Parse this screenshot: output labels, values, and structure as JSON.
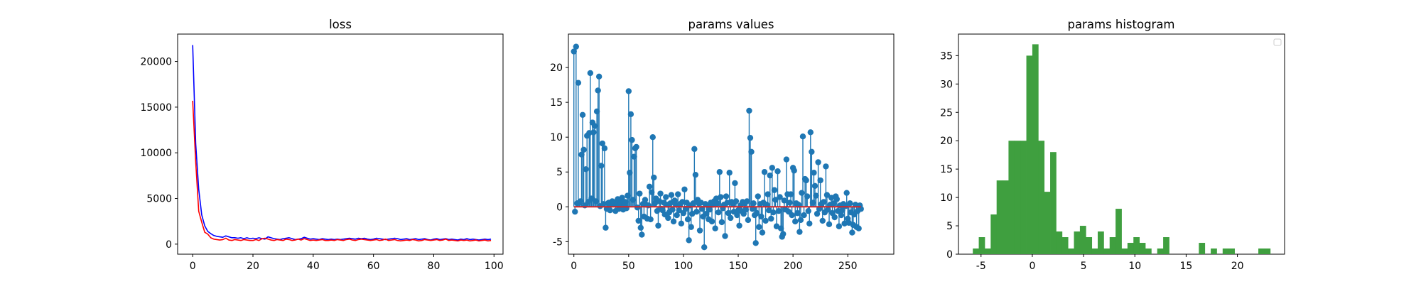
{
  "chart_data": [
    {
      "type": "line",
      "title": "loss",
      "xlabel": "",
      "ylabel": "",
      "xlim": [
        -5,
        103
      ],
      "ylim": [
        -1100,
        23000
      ],
      "xticks": [
        0,
        20,
        40,
        60,
        80,
        100
      ],
      "yticks": [
        0,
        5000,
        10000,
        15000,
        20000
      ],
      "grid": false,
      "series": [
        {
          "color": "#0000ff",
          "x": [
            0,
            1,
            2,
            3,
            4,
            5,
            6,
            7,
            8,
            9,
            10,
            11,
            12,
            13,
            14,
            15,
            16,
            17,
            18,
            19,
            20,
            21,
            22,
            23,
            24,
            25,
            26,
            27,
            28,
            29,
            30,
            31,
            32,
            33,
            34,
            35,
            36,
            37,
            38,
            39,
            40,
            41,
            42,
            43,
            44,
            45,
            46,
            47,
            48,
            49,
            50,
            51,
            52,
            53,
            54,
            55,
            56,
            57,
            58,
            59,
            60,
            61,
            62,
            63,
            64,
            65,
            66,
            67,
            68,
            69,
            70,
            71,
            72,
            73,
            74,
            75,
            76,
            77,
            78,
            79,
            80,
            81,
            82,
            83,
            84,
            85,
            86,
            87,
            88,
            89,
            90,
            91,
            92,
            93,
            94,
            95,
            96,
            97,
            98,
            99
          ],
          "y": [
            21800,
            11000,
            6000,
            3200,
            2000,
            1400,
            1150,
            950,
            850,
            800,
            750,
            900,
            800,
            700,
            700,
            650,
            700,
            600,
            700,
            600,
            650,
            600,
            700,
            600,
            550,
            800,
            700,
            600,
            550,
            500,
            600,
            650,
            700,
            600,
            500,
            550,
            600,
            750,
            650,
            550,
            600,
            550,
            500,
            600,
            550,
            500,
            550,
            500,
            550,
            500,
            550,
            600,
            650,
            600,
            550,
            650,
            600,
            650,
            550,
            500,
            550,
            650,
            600,
            550,
            500,
            550,
            600,
            650,
            600,
            500,
            550,
            600,
            500,
            550,
            600,
            500,
            550,
            600,
            500,
            450,
            550,
            600,
            500,
            550,
            600,
            500,
            550,
            500,
            450,
            550,
            500,
            600,
            500,
            550,
            500,
            450,
            500,
            550,
            500,
            550
          ]
        },
        {
          "color": "#ff0000",
          "x": [
            0,
            1,
            2,
            3,
            4,
            5,
            6,
            7,
            8,
            9,
            10,
            11,
            12,
            13,
            14,
            15,
            16,
            17,
            18,
            19,
            20,
            21,
            22,
            23,
            24,
            25,
            26,
            27,
            28,
            29,
            30,
            31,
            32,
            33,
            34,
            35,
            36,
            37,
            38,
            39,
            40,
            41,
            42,
            43,
            44,
            45,
            46,
            47,
            48,
            49,
            50,
            51,
            52,
            53,
            54,
            55,
            56,
            57,
            58,
            59,
            60,
            61,
            62,
            63,
            64,
            65,
            66,
            67,
            68,
            69,
            70,
            71,
            72,
            73,
            74,
            75,
            76,
            77,
            78,
            79,
            80,
            81,
            82,
            83,
            84,
            85,
            86,
            87,
            88,
            89,
            90,
            91,
            92,
            93,
            94,
            95,
            96,
            97,
            98,
            99
          ],
          "y": [
            15700,
            9000,
            3600,
            2400,
            1300,
            1100,
            700,
            550,
            500,
            450,
            500,
            650,
            450,
            400,
            500,
            450,
            400,
            500,
            450,
            400,
            400,
            500,
            400,
            600,
            650,
            550,
            450,
            400,
            500,
            450,
            400,
            550,
            500,
            400,
            450,
            550,
            450,
            600,
            500,
            400,
            450,
            400,
            450,
            500,
            400,
            400,
            450,
            400,
            500,
            450,
            400,
            500,
            550,
            450,
            400,
            500,
            550,
            500,
            450,
            400,
            450,
            500,
            400,
            450,
            550,
            400,
            450,
            500,
            400,
            350,
            400,
            450,
            400,
            500,
            450,
            350,
            400,
            500,
            450,
            400,
            450,
            500,
            400,
            450,
            550,
            400,
            450,
            400,
            350,
            450,
            400,
            450,
            350,
            400,
            450,
            350,
            400,
            450,
            350,
            400
          ]
        }
      ]
    },
    {
      "type": "stem",
      "title": "params values",
      "xlabel": "",
      "ylabel": "",
      "xlim": [
        -5,
        292
      ],
      "ylim": [
        -6.8,
        24.8
      ],
      "xticks": [
        0,
        50,
        100,
        150,
        200,
        250
      ],
      "yticks": [
        -5,
        0,
        5,
        10,
        15,
        20
      ],
      "baseline": 0,
      "marker_color": "#1f77b4",
      "baseline_color": "#d62728",
      "grid": false,
      "values": [
        22.3,
        -0.7,
        23.0,
        0.5,
        17.8,
        0.6,
        0.8,
        7.5,
        13.2,
        8.2,
        0.2,
        5.4,
        10.2,
        0.7,
        10.6,
        19.2,
        1.2,
        12.1,
        10.7,
        11.6,
        0.8,
        13.7,
        16.7,
        18.7,
        0.1,
        5.9,
        9.1,
        0.4,
        8.4,
        -3.0,
        -0.3,
        0.5,
        0.6,
        -0.5,
        0.3,
        0.8,
        0.7,
        0.5,
        -0.6,
        0.4,
        1.1,
        -0.3,
        0.2,
        0.6,
        1.3,
        -0.4,
        0.3,
        0.7,
        -0.2,
        1.6,
        16.6,
        4.9,
        13.3,
        9.6,
        1.0,
        7.2,
        8.4,
        8.6,
        -0.1,
        -2.0,
        1.9,
        -3.0,
        -4.0,
        0.4,
        -1.4,
        1.0,
        0.3,
        -1.7,
        0.2,
        2.9,
        -1.8,
        2.1,
        10.0,
        4.2,
        0.5,
        1.2,
        -0.6,
        -2.7,
        0.8,
        1.9,
        -0.3,
        -0.5,
        0.6,
        -1.1,
        1.4,
        0.3,
        -1.6,
        -0.8,
        0.5,
        1.7,
        -0.4,
        -2.1,
        0.9,
        0.3,
        -1.2,
        1.8,
        -0.5,
        0.4,
        -2.4,
        0.7,
        -0.9,
        2.5,
        -0.3,
        0.6,
        -1.8,
        -4.8,
        0.2,
        -2.9,
        -1.0,
        0.5,
        8.3,
        4.6,
        -0.7,
        1.0,
        0.5,
        -3.4,
        0.6,
        -0.3,
        -1.4,
        -5.8,
        0.4,
        -1.0,
        0.2,
        -1.8,
        -0.4,
        0.6,
        -2.1,
        0.3,
        0.8,
        -3.1,
        1.2,
        0.5,
        -0.8,
        5.0,
        1.4,
        -2.2,
        -0.2,
        0.3,
        -4.2,
        1.5,
        0.6,
        -0.9,
        4.9,
        -1.6,
        0.7,
        0.4,
        -0.7,
        3.4,
        0.8,
        -1.2,
        -0.5,
        -2.7,
        0.2,
        -0.6,
        0.7,
        -1.0,
        0.5,
        -0.4,
        0.8,
        -1.9,
        13.8,
        9.9,
        7.9,
        -0.3,
        0.5,
        -1.2,
        -5.2,
        -0.9,
        1.5,
        -2.9,
        0.4,
        -1.4,
        -3.7,
        0.6,
        5.0,
        -2.0,
        0.3,
        1.8,
        -0.5,
        4.5,
        -1.7,
        5.6,
        -0.8,
        2.4,
        1.0,
        -2.8,
        5.1,
        -0.6,
        1.4,
        -3.1,
        -4.3,
        -3.9,
        0.9,
        -0.4,
        6.8,
        1.8,
        -0.7,
        0.6,
        1.8,
        -1.2,
        5.6,
        5.2,
        -2.1,
        0.5,
        -0.9,
        0.3,
        -3.6,
        -1.9,
        2.0,
        10.1,
        -1.2,
        4.0,
        3.8,
        1.5,
        -0.6,
        -2.4,
        10.7,
        7.9,
        0.6,
        4.9,
        3.0,
        1.6,
        -1.0,
        6.4,
        -0.3,
        3.8,
        0.4,
        -2.0,
        0.7,
        -0.8,
        5.8,
        1.7,
        -0.4,
        -2.5,
        0.3,
        1.3,
        -0.9,
        0.5,
        -1.5,
        1.5,
        1.1,
        -0.6,
        -2.8,
        0.2,
        -1.2,
        -0.5,
        0.4,
        -2.4,
        0.1,
        2.0,
        -1.7,
        -2.3,
        0.5,
        -0.8,
        -3.7,
        -2.6,
        -1.1,
        0.3,
        -2.9,
        -0.6,
        -3.1,
        0.2,
        -0.3
      ]
    },
    {
      "type": "histogram",
      "title": "params histogram",
      "xlabel": "",
      "ylabel": "",
      "xlim": [
        -7.2,
        24.6
      ],
      "ylim": [
        0,
        38.8
      ],
      "xticks": [
        -5,
        0,
        5,
        10,
        15,
        20
      ],
      "yticks": [
        0,
        5,
        10,
        15,
        20,
        25,
        30,
        35
      ],
      "bar_color": "#3f9f3f",
      "legend": "upper right",
      "legend_entries": [],
      "grid": false,
      "bin_edges": [
        -5.8,
        -5.22,
        -4.64,
        -4.06,
        -3.48,
        -2.9,
        -2.32,
        -1.74,
        -1.16,
        -0.58,
        0.0,
        0.58,
        1.16,
        1.74,
        2.32,
        2.9,
        3.48,
        4.06,
        4.64,
        5.22,
        5.8,
        6.38,
        6.96,
        7.54,
        8.12,
        8.7,
        9.28,
        9.86,
        10.44,
        11.02,
        11.6,
        12.18,
        12.76,
        13.34,
        13.92,
        14.5,
        15.08,
        15.66,
        16.24,
        16.82,
        17.4,
        17.98,
        18.56,
        19.14,
        19.72,
        20.3,
        20.88,
        21.46,
        22.04,
        22.62,
        23.2
      ],
      "counts": [
        1,
        3,
        1,
        7,
        13,
        13,
        20,
        20,
        20,
        35,
        37,
        20,
        11,
        18,
        4,
        3,
        1,
        4,
        5,
        3,
        1,
        4,
        1,
        3,
        8,
        1,
        2,
        3,
        2,
        1,
        0,
        1,
        3,
        0,
        0,
        0,
        0,
        0,
        2,
        0,
        1,
        0,
        1,
        1,
        0,
        0,
        0,
        0,
        1,
        1
      ]
    }
  ]
}
